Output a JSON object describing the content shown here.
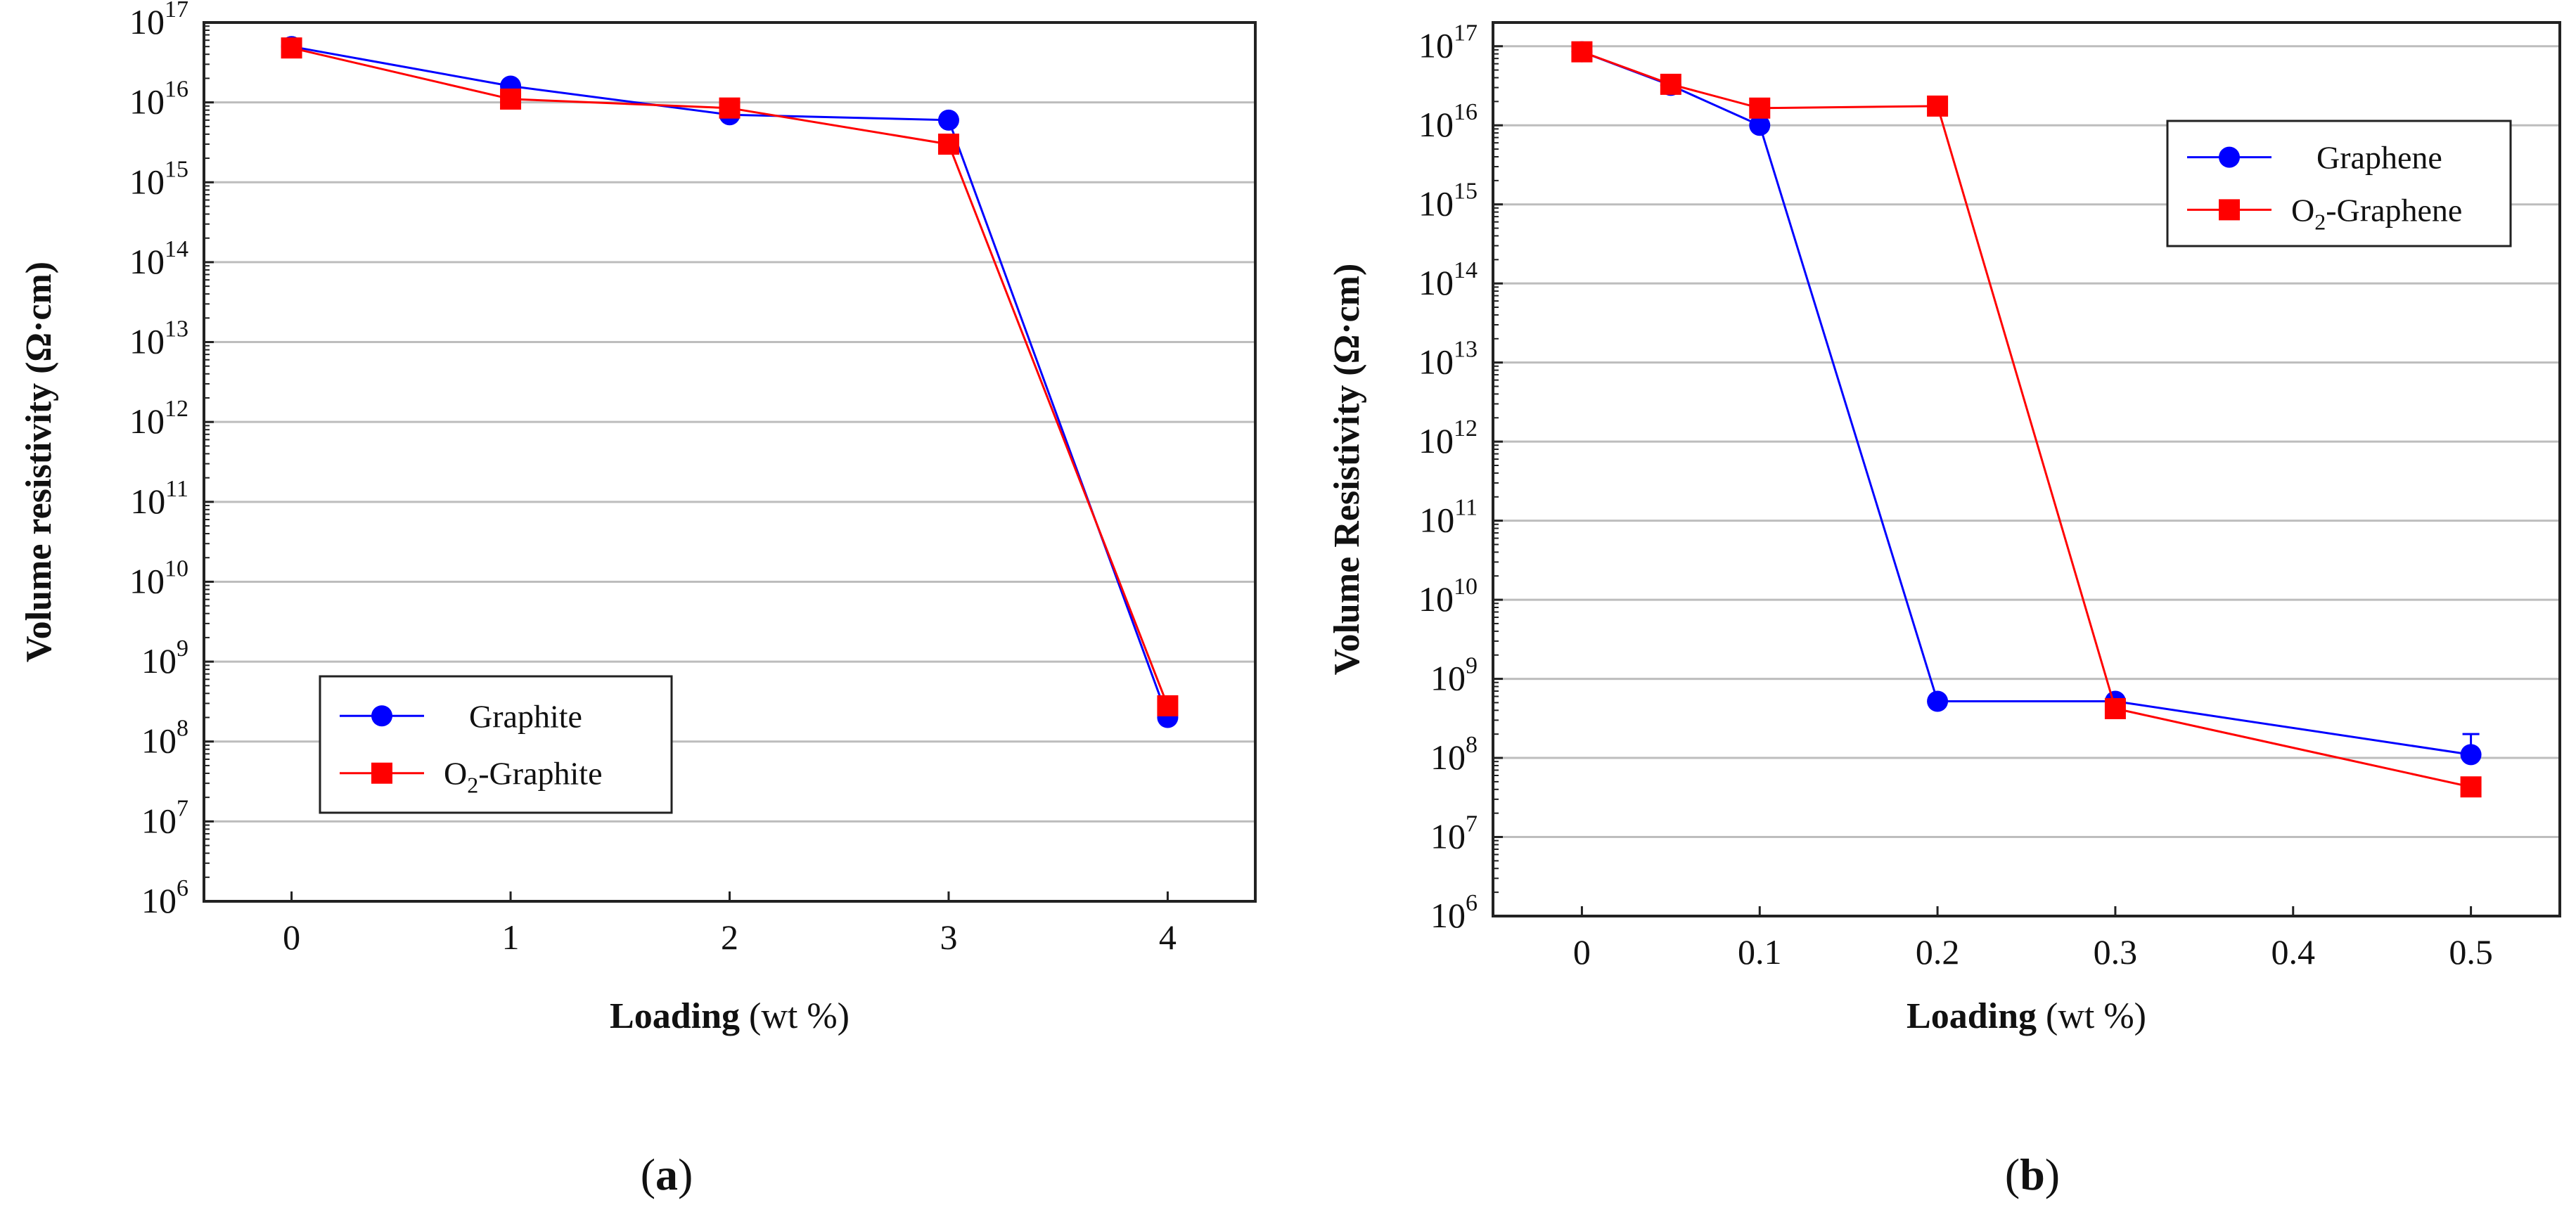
{
  "colors": {
    "series_1": "#0000ff",
    "series_2": "#ff0000",
    "grid": "#bdbdbd",
    "axis": "#222222"
  },
  "chart_data": [
    {
      "panel_id": "a",
      "panel_label": "(a)",
      "type": "line",
      "y_scale": "log10",
      "xlabel_bold": "Loading",
      "xlabel_rest": " (wt %)",
      "ylabel": "Volume resistivity (Ω·cm)",
      "ylim_exponent": [
        6,
        17
      ],
      "xlim": [
        -0.4,
        4.4
      ],
      "x_ticks": [
        0,
        1,
        2,
        3,
        4
      ],
      "x_tick_labels": [
        "0",
        "1",
        "2",
        "3",
        "4"
      ],
      "y_tick_exponents": [
        6,
        7,
        8,
        9,
        10,
        11,
        12,
        13,
        14,
        15,
        16,
        17
      ],
      "y_tick_base": "10",
      "grid": "horizontal",
      "legend_position": "lower-left",
      "series": [
        {
          "name": "Graphite",
          "prefix": "",
          "sub": "",
          "suffix": "Graphite",
          "marker": "circle",
          "x": [
            0,
            1,
            2,
            3,
            4
          ],
          "y": [
            5e+16,
            1.6e+16,
            7000000000000000.0,
            6000000000000000.0,
            200000000.0
          ]
        },
        {
          "name": "O2-Graphite",
          "prefix": "O",
          "sub": "2",
          "suffix": "-Graphite",
          "marker": "square",
          "x": [
            0,
            1,
            2,
            3,
            4
          ],
          "y": [
            4.8e+16,
            1.1e+16,
            8500000000000000.0,
            3000000000000000.0,
            280000000.0
          ]
        }
      ]
    },
    {
      "panel_id": "b",
      "panel_label": "(b)",
      "type": "line",
      "y_scale": "log10",
      "xlabel_bold": "Loading",
      "xlabel_rest": " (wt %)",
      "ylabel": "Volume Resistivity (Ω·cm)",
      "ylim_exponent": [
        6,
        17.3
      ],
      "xlim": [
        -0.05,
        0.55
      ],
      "x_ticks": [
        0,
        0.1,
        0.2,
        0.3,
        0.4,
        0.5
      ],
      "x_tick_labels": [
        "0",
        "0.1",
        "0.2",
        "0.3",
        "0.4",
        "0.5"
      ],
      "y_tick_exponents": [
        6,
        7,
        8,
        9,
        10,
        11,
        12,
        13,
        14,
        15,
        16,
        17
      ],
      "y_tick_base": "10",
      "grid": "horizontal",
      "legend_position": "upper-right",
      "series": [
        {
          "name": "Graphene",
          "prefix": "",
          "sub": "",
          "suffix": "Graphene",
          "marker": "circle",
          "x": [
            0,
            0.05,
            0.1,
            0.2,
            0.3,
            0.5
          ],
          "y": [
            8.5e+16,
            3.2e+16,
            1e+16,
            520000000.0,
            520000000.0,
            110000000.0
          ],
          "err_hi": [
            null,
            null,
            null,
            null,
            null,
            200000000.0
          ]
        },
        {
          "name": "O2-Graphene",
          "prefix": "O",
          "sub": "2",
          "suffix": "-Graphene",
          "marker": "square",
          "x": [
            0,
            0.05,
            0.1,
            0.2,
            0.3,
            0.5
          ],
          "y": [
            8.5e+16,
            3.3e+16,
            1.65e+16,
            1.75e+16,
            420000000.0,
            43000000.0
          ]
        }
      ]
    }
  ]
}
